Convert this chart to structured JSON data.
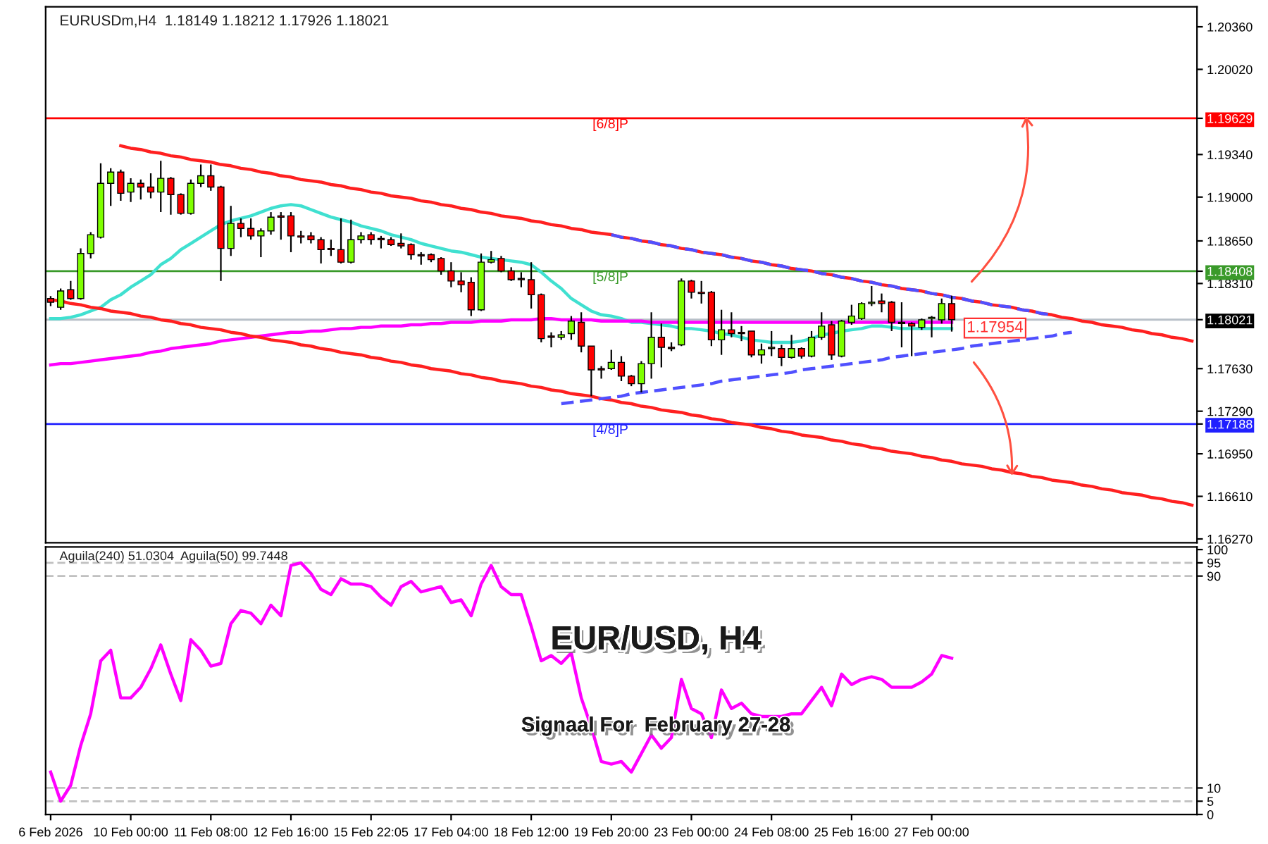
{
  "chart_data": [
    {
      "type": "candlestick",
      "title": "EURUSDm,H4  1.18149 1.18212 1.17926 1.18021",
      "categories": [
        null,
        null,
        null,
        null,
        null,
        null,
        null,
        null,
        null,
        null,
        null,
        null,
        null,
        null,
        null,
        null,
        null,
        null,
        null,
        null,
        null,
        null,
        null,
        null,
        null,
        null,
        null,
        null,
        null,
        null,
        null,
        null,
        null,
        null,
        null,
        null,
        null,
        null,
        null,
        null,
        null,
        null,
        null,
        null,
        null,
        null,
        null,
        null,
        null,
        null,
        null,
        null,
        null,
        null,
        null,
        null,
        null,
        null,
        null,
        null,
        null,
        null,
        null,
        null,
        null,
        null,
        null,
        null,
        null,
        null,
        null,
        null,
        null,
        null,
        null,
        null,
        null,
        null,
        null,
        null,
        null,
        null,
        null,
        null,
        null,
        null,
        null,
        null,
        null,
        null,
        null,
        null,
        null,
        null,
        null,
        null,
        null,
        null,
        null,
        null,
        null,
        null,
        null,
        null,
        null,
        null,
        null,
        null,
        null,
        null,
        null,
        null,
        null,
        null,
        null
      ],
      "ohlc": [
        [
          1.1819,
          1.1821,
          1.1813,
          1.1816
        ],
        [
          1.1812,
          1.1827,
          1.181,
          1.1825
        ],
        [
          1.1826,
          1.1833,
          1.1818,
          1.1819
        ],
        [
          1.1819,
          1.1859,
          1.1818,
          1.1855
        ],
        [
          1.1855,
          1.1872,
          1.1851,
          1.187
        ],
        [
          1.1868,
          1.1927,
          1.1867,
          1.1911
        ],
        [
          1.1911,
          1.1923,
          1.1893,
          1.192
        ],
        [
          1.192,
          1.1922,
          1.1897,
          1.1903
        ],
        [
          1.1904,
          1.1915,
          1.1896,
          1.1911
        ],
        [
          1.1911,
          1.1914,
          1.1898,
          1.1908
        ],
        [
          1.1908,
          1.1919,
          1.1899,
          1.1904
        ],
        [
          1.1904,
          1.1929,
          1.1888,
          1.1915
        ],
        [
          1.1915,
          1.1916,
          1.1886,
          1.1902
        ],
        [
          1.1902,
          1.1903,
          1.1886,
          1.1887
        ],
        [
          1.1887,
          1.1914,
          1.1886,
          1.1911
        ],
        [
          1.1911,
          1.1926,
          1.1908,
          1.1917
        ],
        [
          1.1917,
          1.1926,
          1.1905,
          1.1908
        ],
        [
          1.1908,
          1.1909,
          1.1833,
          1.1859
        ],
        [
          1.1859,
          1.1893,
          1.1853,
          1.1879
        ],
        [
          1.1879,
          1.1883,
          1.1868,
          1.1875
        ],
        [
          1.1875,
          1.1883,
          1.1866,
          1.1869
        ],
        [
          1.1869,
          1.1875,
          1.1852,
          1.1873
        ],
        [
          1.1873,
          1.1888,
          1.187,
          1.1884
        ],
        [
          1.1885,
          1.1888,
          1.1866,
          1.1884
        ],
        [
          1.1885,
          1.1888,
          1.1856,
          1.1869
        ],
        [
          1.1869,
          1.1873,
          1.1863,
          1.1868
        ],
        [
          1.1869,
          1.1872,
          1.1863,
          1.1866
        ],
        [
          1.1866,
          1.1868,
          1.1847,
          1.1858
        ],
        [
          1.1859,
          1.1866,
          1.1853,
          1.1858
        ],
        [
          1.1858,
          1.1883,
          1.1847,
          1.1848
        ],
        [
          1.1848,
          1.1882,
          1.1847,
          1.1866
        ],
        [
          1.1866,
          1.1872,
          1.1863,
          1.1869
        ],
        [
          1.187,
          1.1872,
          1.1862,
          1.1866
        ],
        [
          1.1867,
          1.1869,
          1.1859,
          1.1866
        ],
        [
          1.1866,
          1.1868,
          1.1861,
          1.1862
        ],
        [
          1.1863,
          1.1871,
          1.1859,
          1.1861
        ],
        [
          1.1862,
          1.1863,
          1.185,
          1.1854
        ],
        [
          1.1854,
          1.1856,
          1.1846,
          1.1853
        ],
        [
          1.1854,
          1.1855,
          1.1848,
          1.185
        ],
        [
          1.1851,
          1.1852,
          1.1838,
          1.1841
        ],
        [
          1.1841,
          1.1848,
          1.1828,
          1.1833
        ],
        [
          1.1833,
          1.184,
          1.1824,
          1.183
        ],
        [
          1.1832,
          1.1836,
          1.1805,
          1.181
        ],
        [
          1.181,
          1.1855,
          1.1809,
          1.1848
        ],
        [
          1.1848,
          1.1857,
          1.1847,
          1.185
        ],
        [
          1.1851,
          1.1853,
          1.184,
          1.1841
        ],
        [
          1.1841,
          1.1844,
          1.1833,
          1.1834
        ],
        [
          1.1835,
          1.184,
          1.1828,
          1.1834
        ],
        [
          1.1834,
          1.1848,
          1.1811,
          1.1822
        ],
        [
          1.1822,
          1.1823,
          1.1784,
          1.1787
        ],
        [
          1.1789,
          1.1792,
          1.178,
          1.1788
        ],
        [
          1.1788,
          1.1793,
          1.1786,
          1.179
        ],
        [
          1.1791,
          1.1805,
          1.1786,
          1.1801
        ],
        [
          1.18,
          1.1808,
          1.1776,
          1.1781
        ],
        [
          1.1781,
          1.1781,
          1.1741,
          1.1762
        ],
        [
          1.1763,
          1.1765,
          1.1755,
          1.1762
        ],
        [
          1.1763,
          1.1778,
          1.1762,
          1.1768
        ],
        [
          1.1768,
          1.1773,
          1.1753,
          1.1757
        ],
        [
          1.1757,
          1.1758,
          1.1749,
          1.1751
        ],
        [
          1.1751,
          1.1769,
          1.1744,
          1.1767
        ],
        [
          1.1767,
          1.1808,
          1.1755,
          1.1788
        ],
        [
          1.1788,
          1.1799,
          1.1764,
          1.178
        ],
        [
          1.178,
          1.1784,
          1.1777,
          1.1779
        ],
        [
          1.1782,
          1.1835,
          1.1781,
          1.1833
        ],
        [
          1.1833,
          1.1834,
          1.1819,
          1.1824
        ],
        [
          1.1824,
          1.1833,
          1.1815,
          1.1823
        ],
        [
          1.1824,
          1.1825,
          1.1781,
          1.1786
        ],
        [
          1.1786,
          1.181,
          1.1774,
          1.1794
        ],
        [
          1.1794,
          1.1808,
          1.1788,
          1.1791
        ],
        [
          1.1792,
          1.1797,
          1.1785,
          1.1791
        ],
        [
          1.1793,
          1.1793,
          1.1772,
          1.1774
        ],
        [
          1.1774,
          1.1783,
          1.1767,
          1.1778
        ],
        [
          1.1779,
          1.1793,
          1.1773,
          1.178
        ],
        [
          1.1779,
          1.1782,
          1.1765,
          1.1772
        ],
        [
          1.1772,
          1.179,
          1.1771,
          1.1779
        ],
        [
          1.1779,
          1.178,
          1.1771,
          1.1773
        ],
        [
          1.1773,
          1.1793,
          1.1772,
          1.1788
        ],
        [
          1.1788,
          1.1808,
          1.1786,
          1.1797
        ],
        [
          1.1798,
          1.1801,
          1.177,
          1.1774
        ],
        [
          1.1773,
          1.1802,
          1.1772,
          1.1801
        ],
        [
          1.18,
          1.1814,
          1.1798,
          1.1805
        ],
        [
          1.1803,
          1.1816,
          1.1802,
          1.1815
        ],
        [
          1.1815,
          1.1829,
          1.1813,
          1.1816
        ],
        [
          1.1817,
          1.1823,
          1.1808,
          1.1815
        ],
        [
          1.1816,
          1.1817,
          1.1793,
          1.18
        ],
        [
          1.18,
          1.1816,
          1.178,
          1.1799
        ],
        [
          1.1799,
          1.18,
          1.1773,
          1.1797
        ],
        [
          1.1796,
          1.1803,
          1.1794,
          1.1802
        ],
        [
          1.1803,
          1.1805,
          1.1788,
          1.1804
        ],
        [
          1.1802,
          1.1819,
          1.1799,
          1.1815
        ],
        [
          1.18149,
          1.18212,
          1.17926,
          1.18021
        ],
        null,
        null,
        null,
        null,
        null,
        null,
        null,
        null,
        null,
        null,
        null,
        null,
        null,
        null,
        null,
        null,
        null,
        null,
        null,
        null,
        null,
        null,
        null,
        null
      ],
      "series": [
        {
          "type": "line",
          "color": "#40e0d0",
          "line_style": "solid",
          "values": [
            1.1803,
            1.1803,
            1.1804,
            1.1806,
            1.1809,
            1.1812,
            1.1818,
            1.1822,
            1.1828,
            1.1833,
            1.1838,
            1.1846,
            1.1851,
            1.1858,
            1.1863,
            1.1868,
            1.1873,
            1.1878,
            1.1881,
            1.1883,
            1.1885,
            1.1888,
            1.1891,
            1.1893,
            1.1894,
            1.1893,
            1.189,
            1.1887,
            1.1884,
            1.1882,
            1.188,
            1.1877,
            1.1875,
            1.1873,
            1.187,
            1.1868,
            1.1866,
            1.1863,
            1.1861,
            1.1859,
            1.1857,
            1.1856,
            1.1854,
            1.1852,
            1.1851,
            1.185,
            1.1849,
            1.1848,
            1.1846,
            1.184,
            1.1833,
            1.1827,
            1.1819,
            1.1814,
            1.1809,
            1.1806,
            1.1805,
            1.1803,
            1.18,
            1.18,
            1.1799,
            1.1798,
            1.1797,
            1.1795,
            1.1795,
            1.1794,
            1.1793,
            1.1791,
            1.179,
            1.1788,
            1.1786,
            1.1785,
            1.1784,
            1.1784,
            1.1784,
            1.1785,
            1.1787,
            1.179,
            1.1791,
            1.1793,
            1.1794,
            1.1795,
            1.1797,
            1.1797,
            1.1796,
            1.1795,
            1.1795,
            1.1795,
            1.1795,
            1.1795,
            1.1795,
            null,
            null,
            null,
            null,
            null,
            null,
            null,
            null,
            null,
            null,
            null,
            null,
            null,
            null,
            null,
            null,
            null,
            null,
            null,
            null,
            null,
            null,
            null,
            null
          ]
        },
        {
          "type": "line",
          "color": "#ff00ff",
          "line_style": "solid",
          "values": [
            1.1766,
            1.1767,
            1.1767,
            1.1768,
            1.1769,
            1.177,
            1.1771,
            1.1772,
            1.1773,
            1.1774,
            1.1776,
            1.1777,
            1.1779,
            1.178,
            1.1781,
            1.1782,
            1.1783,
            1.1785,
            1.1786,
            1.1787,
            1.1788,
            1.1789,
            1.179,
            1.1791,
            1.1792,
            1.1792,
            1.1793,
            1.1793,
            1.1794,
            1.1795,
            1.1795,
            1.1796,
            1.1796,
            1.1797,
            1.1797,
            1.1797,
            1.1798,
            1.1798,
            1.1799,
            1.1799,
            1.18,
            1.18,
            1.18,
            1.1801,
            1.1801,
            1.1801,
            1.1802,
            1.1802,
            1.1802,
            1.1803,
            1.1803,
            1.1802,
            1.1802,
            1.1802,
            1.1802,
            1.1801,
            1.1801,
            1.1801,
            1.1801,
            1.1801,
            1.18,
            1.18,
            1.18,
            1.18,
            1.18,
            1.18,
            1.18,
            1.18,
            1.18,
            1.18,
            1.18,
            1.18,
            1.18,
            1.18,
            1.18,
            1.18,
            1.18,
            1.18,
            1.18,
            1.18,
            1.18,
            1.18,
            1.18,
            1.18,
            1.18,
            1.18,
            1.18,
            1.18,
            1.18,
            1.18,
            1.18,
            null,
            null,
            null,
            null,
            null,
            null,
            null,
            null,
            null,
            null,
            null,
            null,
            null,
            null,
            null,
            null,
            null,
            null,
            null,
            null,
            null,
            null,
            null,
            null
          ]
        },
        {
          "type": "line",
          "color": "#ff2020",
          "line_style": "solid",
          "values": [
            null,
            null,
            null,
            null,
            null,
            null,
            null,
            1.1941,
            1.1939,
            1.1938,
            1.1936,
            1.1935,
            1.1933,
            1.1932,
            1.193,
            1.1929,
            1.1928,
            1.1926,
            1.1925,
            1.1923,
            1.1922,
            1.192,
            1.1919,
            1.1917,
            1.1916,
            1.1914,
            1.1913,
            1.1912,
            1.191,
            1.1909,
            1.1907,
            1.1906,
            1.1904,
            1.1903,
            1.1901,
            1.19,
            1.1899,
            1.1897,
            1.1896,
            1.1894,
            1.1893,
            1.1891,
            1.189,
            1.1888,
            1.1887,
            1.1885,
            1.1884,
            1.1883,
            1.1881,
            1.188,
            1.1878,
            1.1877,
            1.1875,
            1.1874,
            1.1872,
            1.1871,
            1.187,
            1.1868,
            1.1867,
            1.1865,
            1.1864,
            1.1862,
            1.1861,
            1.1859,
            1.1858,
            1.1856,
            1.1855,
            1.1854,
            1.1852,
            1.1851,
            1.1849,
            1.1848,
            1.1846,
            1.1845,
            1.1843,
            1.1842,
            1.1841,
            1.1839,
            1.1838,
            1.1836,
            1.1835,
            1.1833,
            1.1832,
            1.183,
            1.1829,
            1.1827,
            1.1826,
            1.1825,
            1.1823,
            1.1822,
            1.182,
            1.1819,
            1.1817,
            1.1816,
            1.1814,
            1.1813,
            1.1812,
            1.181,
            1.1809,
            1.1807,
            1.1806,
            1.1804,
            1.1803,
            1.1801,
            1.18,
            1.1798,
            1.1797,
            1.1796,
            1.1794,
            1.1793,
            1.1791,
            1.179,
            1.1788,
            1.1787,
            1.1785
          ]
        },
        {
          "type": "line",
          "color": "#ff2020",
          "line_style": "solid",
          "values": [
            1.1818,
            1.1817,
            1.1815,
            1.1814,
            1.1812,
            1.1811,
            1.1809,
            1.1808,
            1.1807,
            1.1805,
            1.1804,
            1.1802,
            1.1801,
            1.1799,
            1.1798,
            1.1796,
            1.1795,
            1.1794,
            1.1792,
            1.1791,
            1.1789,
            1.1788,
            1.1786,
            1.1785,
            1.1784,
            1.1782,
            1.1781,
            1.1779,
            1.1778,
            1.1776,
            1.1775,
            1.1774,
            1.1772,
            1.1771,
            1.1769,
            1.1768,
            1.1766,
            1.1765,
            1.1763,
            1.1762,
            1.1761,
            1.1759,
            1.1758,
            1.1756,
            1.1755,
            1.1753,
            1.1752,
            1.1751,
            1.1749,
            1.1748,
            1.1746,
            1.1745,
            1.1743,
            1.1742,
            1.1741,
            1.1739,
            1.1738,
            1.1736,
            1.1735,
            1.1733,
            1.1732,
            1.173,
            1.1729,
            1.1728,
            1.1726,
            1.1725,
            1.1723,
            1.1722,
            1.172,
            1.1719,
            1.1718,
            1.1716,
            1.1715,
            1.1713,
            1.1712,
            1.171,
            1.1709,
            1.1708,
            1.1706,
            1.1705,
            1.1703,
            1.1702,
            1.17,
            1.1699,
            1.1697,
            1.1696,
            1.1695,
            1.1693,
            1.1692,
            1.169,
            1.1689,
            1.1687,
            1.1686,
            1.1685,
            1.1683,
            1.1682,
            1.168,
            1.1679,
            1.1677,
            1.1676,
            1.1674,
            1.1673,
            1.1672,
            1.167,
            1.1669,
            1.1667,
            1.1666,
            1.1664,
            1.1663,
            1.1662,
            1.166,
            1.1659,
            1.1657,
            1.1656,
            1.1654
          ]
        },
        {
          "type": "line",
          "color": "#5050ff",
          "line_style": "dashed",
          "values": [
            null,
            null,
            null,
            null,
            null,
            null,
            null,
            null,
            null,
            null,
            null,
            null,
            null,
            null,
            null,
            null,
            null,
            null,
            null,
            null,
            null,
            null,
            null,
            null,
            null,
            null,
            null,
            null,
            null,
            null,
            null,
            null,
            null,
            null,
            null,
            null,
            null,
            null,
            null,
            null,
            null,
            null,
            null,
            null,
            null,
            null,
            null,
            null,
            null,
            null,
            null,
            null,
            null,
            null,
            null,
            null,
            1.187,
            1.1868,
            1.1867,
            1.1865,
            1.1864,
            1.1862,
            1.1861,
            1.1859,
            1.1858,
            1.1856,
            1.1855,
            1.1854,
            1.1852,
            1.1851,
            1.1849,
            1.1848,
            1.1846,
            1.1845,
            1.1843,
            1.1842,
            1.1841,
            1.1839,
            1.1838,
            1.1836,
            1.1835,
            1.1833,
            1.1832,
            1.183,
            1.1829,
            1.1827,
            1.1826,
            1.1825,
            1.1823,
            1.1822,
            1.182,
            1.1819,
            1.1817,
            1.1816,
            1.1814,
            1.1813,
            1.1812,
            1.181,
            1.1809,
            1.1807,
            1.1806,
            null,
            null,
            null,
            null,
            null,
            null,
            null,
            null,
            null,
            null,
            null,
            null,
            null,
            null
          ]
        },
        {
          "type": "line",
          "color": "#5050ff",
          "line_style": "dashed",
          "values": [
            null,
            null,
            null,
            null,
            null,
            null,
            null,
            null,
            null,
            null,
            null,
            null,
            null,
            null,
            null,
            null,
            null,
            null,
            null,
            null,
            null,
            null,
            null,
            null,
            null,
            null,
            null,
            null,
            null,
            null,
            null,
            null,
            null,
            null,
            null,
            null,
            null,
            null,
            null,
            null,
            null,
            null,
            null,
            null,
            null,
            null,
            null,
            null,
            null,
            null,
            null,
            1.1735,
            1.1736,
            1.1737,
            1.1738,
            1.1739,
            1.174,
            1.1741,
            1.1743,
            1.1744,
            1.1745,
            1.1746,
            1.1747,
            1.1748,
            1.1749,
            1.175,
            1.1751,
            1.1753,
            1.1754,
            1.1755,
            1.1756,
            1.1757,
            1.1758,
            1.1759,
            1.176,
            1.1762,
            1.1763,
            1.1764,
            1.1765,
            1.1766,
            1.1767,
            1.1768,
            1.1769,
            1.177,
            1.1772,
            1.1773,
            1.1774,
            1.1775,
            1.1776,
            1.1777,
            1.1778,
            1.1779,
            1.1781,
            1.1782,
            1.1783,
            1.1784,
            1.1785,
            1.1786,
            1.1787,
            1.1788,
            1.1789,
            1.1791,
            1.1792,
            null,
            null,
            null,
            null,
            null,
            null,
            null,
            null,
            null,
            null,
            null,
            null
          ]
        }
      ],
      "ylim": [
        1.1624,
        1.2052
      ],
      "yticks": [
        {
          "value": 1.1627,
          "label": "1.16270"
        },
        {
          "value": 1.1661,
          "label": "1.16610"
        },
        {
          "value": 1.1695,
          "label": "1.16950"
        },
        {
          "value": 1.1729,
          "label": "1.17290"
        },
        {
          "value": 1.1763,
          "label": "1.17630"
        },
        {
          "value": 1.1831,
          "label": "1.18310"
        },
        {
          "value": 1.1865,
          "label": "1.18650"
        },
        {
          "value": 1.19,
          "label": "1.19000"
        },
        {
          "value": 1.1934,
          "label": "1.19340"
        },
        {
          "value": 1.19629,
          "label": "1.19629"
        },
        {
          "value": 1.18408,
          "label": "1.18408"
        },
        {
          "value": 1.18021,
          "label": "1.18021"
        },
        {
          "value": 1.17188,
          "label": "1.17188"
        },
        {
          "value": 1.2002,
          "label": "1.20020"
        },
        {
          "value": 1.2036,
          "label": "1.20360"
        }
      ],
      "ref_lines": [
        {
          "axis": "y",
          "value": 1.19629,
          "label": "[6/8]P",
          "color": "#ff0000"
        },
        {
          "axis": "y",
          "value": 1.18408,
          "label": "[5/8]P",
          "color": "#3a9a2a"
        },
        {
          "axis": "y",
          "value": 1.17188,
          "label": "[4/8]P",
          "color": "#2020ff"
        },
        {
          "axis": "y",
          "value": 1.18021,
          "label": null,
          "color": "#b8c0c8"
        }
      ],
      "annotations": [
        {
          "text": "1.17954",
          "y": 1.17954
        }
      ],
      "tick_labels": "y"
    },
    {
      "type": "line",
      "title": "Aguila(240) 51.0304  Aguila(50) 99.7448",
      "categories": [
        "6 Feb 2026",
        null,
        null,
        null,
        null,
        null,
        null,
        null,
        "10 Feb 00:00",
        null,
        null,
        null,
        null,
        null,
        null,
        null,
        "11 Feb 08:00",
        null,
        null,
        null,
        null,
        null,
        null,
        null,
        "12 Feb 16:00",
        null,
        null,
        null,
        null,
        null,
        null,
        null,
        "15 Feb 22:05",
        null,
        null,
        null,
        null,
        null,
        null,
        null,
        "17 Feb 04:00",
        null,
        null,
        null,
        null,
        null,
        null,
        null,
        "18 Feb 12:00",
        null,
        null,
        null,
        null,
        null,
        null,
        null,
        "19 Feb 20:00",
        null,
        null,
        null,
        null,
        null,
        null,
        null,
        "23 Feb 00:00",
        null,
        null,
        null,
        null,
        null,
        null,
        null,
        "24 Feb 08:00",
        null,
        null,
        null,
        null,
        null,
        null,
        null,
        "25 Feb 16:00",
        null,
        null,
        null,
        null,
        null,
        null,
        null,
        "27 Feb 00:00",
        null,
        null,
        null,
        null,
        null,
        null,
        null,
        null,
        null,
        null,
        null,
        null,
        null,
        null,
        null,
        null,
        null,
        null,
        null,
        null,
        null,
        null,
        null,
        null,
        null,
        null
      ],
      "series": [
        {
          "type": "line",
          "color": "#ff00ff",
          "line_style": "solid",
          "values": [
            16,
            5,
            11,
            26,
            38,
            58,
            62,
            44,
            44,
            48,
            55,
            64,
            53,
            43,
            66,
            62,
            56,
            57,
            72,
            77,
            76,
            72,
            79,
            75,
            94,
            95,
            91,
            85,
            83,
            89,
            87,
            87,
            86,
            82,
            79,
            86,
            88,
            84,
            85,
            86,
            80,
            81,
            75,
            87,
            94,
            86,
            83,
            83,
            71,
            58,
            60,
            57,
            61,
            44,
            33,
            20,
            19,
            20,
            16,
            23,
            30,
            25,
            29,
            51,
            40,
            38,
            29,
            47,
            40,
            42,
            38,
            37,
            37,
            37,
            38,
            38,
            43,
            48,
            41,
            53,
            49,
            51,
            52,
            51,
            48,
            48,
            48,
            50,
            53,
            60,
            59,
            null,
            null,
            null,
            null,
            null,
            null,
            null,
            null,
            null,
            null,
            null,
            null,
            null,
            null,
            null,
            null,
            null,
            null,
            null,
            null,
            null,
            null,
            null,
            null
          ]
        }
      ],
      "ylim": [
        0,
        101
      ],
      "yticks": [
        0,
        5,
        10,
        90,
        95,
        100
      ],
      "ref_lines": [
        {
          "axis": "y",
          "value": 5,
          "color": "#c0c0c0",
          "line_style": "dashed"
        },
        {
          "axis": "y",
          "value": 10,
          "color": "#c0c0c0",
          "line_style": "dashed"
        },
        {
          "axis": "y",
          "value": 90,
          "color": "#c0c0c0",
          "line_style": "dashed"
        },
        {
          "axis": "y",
          "value": 95,
          "color": "#c0c0c0",
          "line_style": "dashed"
        }
      ],
      "annotations": [
        "EUR/USD, H4",
        "Signaal For  February 27-28"
      ]
    }
  ]
}
